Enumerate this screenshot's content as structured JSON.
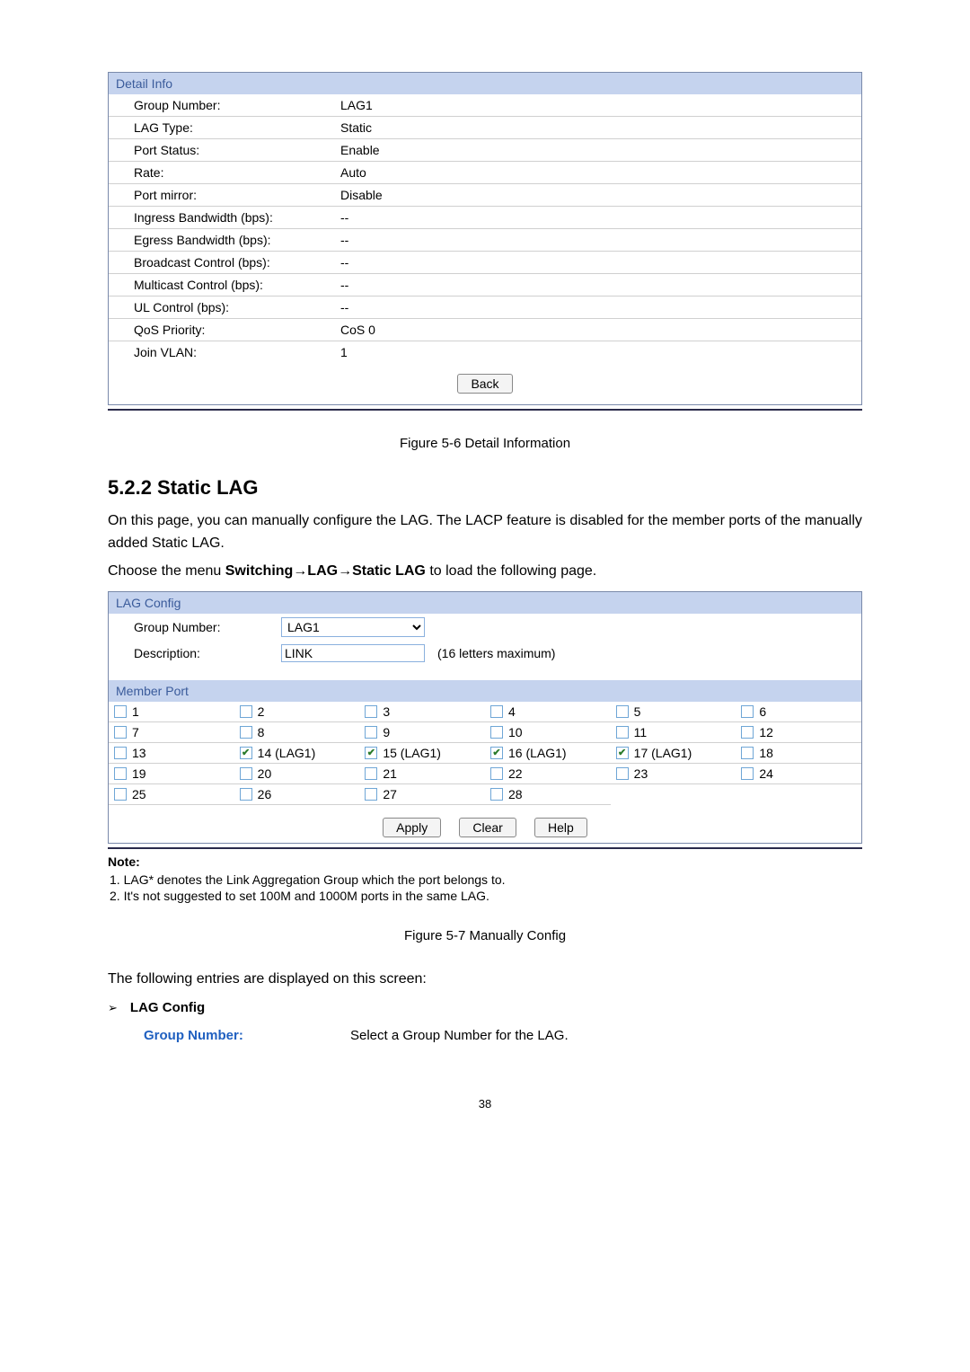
{
  "detail_info": {
    "header": "Detail Info",
    "rows": [
      {
        "label": "Group Number:",
        "value": "LAG1"
      },
      {
        "label": "LAG Type:",
        "value": "Static"
      },
      {
        "label": "Port Status:",
        "value": "Enable"
      },
      {
        "label": "Rate:",
        "value": "Auto"
      },
      {
        "label": "Port mirror:",
        "value": "Disable"
      },
      {
        "label": "Ingress Bandwidth (bps):",
        "value": "--"
      },
      {
        "label": "Egress Bandwidth (bps):",
        "value": "--"
      },
      {
        "label": "Broadcast Control (bps):",
        "value": "--"
      },
      {
        "label": "Multicast Control (bps):",
        "value": "--"
      },
      {
        "label": "UL Control (bps):",
        "value": "--"
      },
      {
        "label": "QoS Priority:",
        "value": "CoS 0"
      },
      {
        "label": "Join VLAN:",
        "value": "1"
      }
    ],
    "back_label": "Back"
  },
  "figure1_caption": "Figure 5-6 Detail Information",
  "section_title": "5.2.2 Static LAG",
  "para1": "On this page, you can manually configure the LAG. The LACP feature is disabled for the member ports of the manually added Static LAG.",
  "para2_pre": "Choose the menu ",
  "para2_bold": "Switching→LAG→Static LAG",
  "para2_post": " to load the following page.",
  "lag_config": {
    "header": "LAG Config",
    "group_label": "Group Number:",
    "group_value": "LAG1",
    "desc_label": "Description:",
    "desc_value": "LINK",
    "desc_hint": "(16 letters maximum)"
  },
  "member_port": {
    "header": "Member Port",
    "ports": [
      {
        "n": "1",
        "c": false
      },
      {
        "n": "2",
        "c": false
      },
      {
        "n": "3",
        "c": false
      },
      {
        "n": "4",
        "c": false
      },
      {
        "n": "5",
        "c": false
      },
      {
        "n": "6",
        "c": false
      },
      {
        "n": "7",
        "c": false
      },
      {
        "n": "8",
        "c": false
      },
      {
        "n": "9",
        "c": false
      },
      {
        "n": "10",
        "c": false
      },
      {
        "n": "11",
        "c": false
      },
      {
        "n": "12",
        "c": false
      },
      {
        "n": "13",
        "c": false
      },
      {
        "n": "14 (LAG1)",
        "c": true
      },
      {
        "n": "15 (LAG1)",
        "c": true
      },
      {
        "n": "16 (LAG1)",
        "c": true
      },
      {
        "n": "17 (LAG1)",
        "c": true
      },
      {
        "n": "18",
        "c": false
      },
      {
        "n": "19",
        "c": false
      },
      {
        "n": "20",
        "c": false
      },
      {
        "n": "21",
        "c": false
      },
      {
        "n": "22",
        "c": false
      },
      {
        "n": "23",
        "c": false
      },
      {
        "n": "24",
        "c": false
      },
      {
        "n": "25",
        "c": false
      },
      {
        "n": "26",
        "c": false
      },
      {
        "n": "27",
        "c": false
      },
      {
        "n": "28",
        "c": false
      }
    ],
    "apply": "Apply",
    "clear": "Clear",
    "help": "Help"
  },
  "note": {
    "title": "Note:",
    "lines": [
      "1. LAG* denotes the Link Aggregation Group which the port belongs to.",
      "2. It's not suggested to set 100M and 1000M ports in the same LAG."
    ]
  },
  "figure2_caption": "Figure 5-7 Manually Config",
  "entries_line": "The following entries are displayed on this screen:",
  "bullet_label": "LAG Config",
  "field_def": {
    "label": "Group Number:",
    "desc": "Select a Group Number for the LAG."
  },
  "page_number": "38",
  "colors": {
    "header_bg": "#c5d3ee",
    "header_text": "#3a5b9b",
    "link_blue": "#2060c0",
    "checkbox_border": "#6fa6d6"
  }
}
